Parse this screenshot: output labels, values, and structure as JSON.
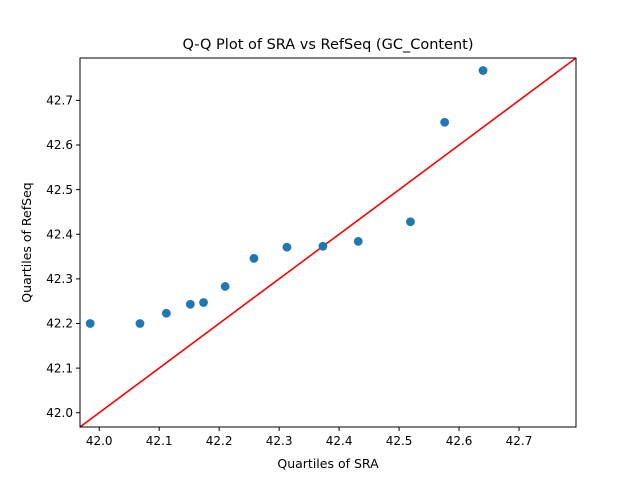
{
  "chart_data": {
    "type": "scatter",
    "title": "Q-Q Plot of SRA vs RefSeq (GC_Content)",
    "xlabel": "Quartiles of SRA",
    "ylabel": "Quartiles of RefSeq",
    "xlim": [
      41.968,
      42.795
    ],
    "ylim": [
      41.968,
      42.795
    ],
    "xticks": [
      "42.0",
      "42.1",
      "42.2",
      "42.3",
      "42.4",
      "42.5",
      "42.6",
      "42.7"
    ],
    "yticks": [
      "42.0",
      "42.1",
      "42.2",
      "42.3",
      "42.4",
      "42.5",
      "42.6",
      "42.7"
    ],
    "grid": false,
    "points": [
      {
        "x": 41.985,
        "y": 42.2
      },
      {
        "x": 42.068,
        "y": 42.2
      },
      {
        "x": 42.112,
        "y": 42.223
      },
      {
        "x": 42.152,
        "y": 42.243
      },
      {
        "x": 42.174,
        "y": 42.247
      },
      {
        "x": 42.21,
        "y": 42.283
      },
      {
        "x": 42.258,
        "y": 42.346
      },
      {
        "x": 42.313,
        "y": 42.371
      },
      {
        "x": 42.373,
        "y": 42.373
      },
      {
        "x": 42.432,
        "y": 42.384
      },
      {
        "x": 42.519,
        "y": 42.428
      },
      {
        "x": 42.576,
        "y": 42.651
      },
      {
        "x": 42.64,
        "y": 42.767
      }
    ],
    "reference_line": {
      "from": [
        41.968,
        41.968
      ],
      "to": [
        42.795,
        42.795
      ]
    },
    "colors": {
      "points": "#1f77b4",
      "reference_line": "#ff0000"
    }
  }
}
